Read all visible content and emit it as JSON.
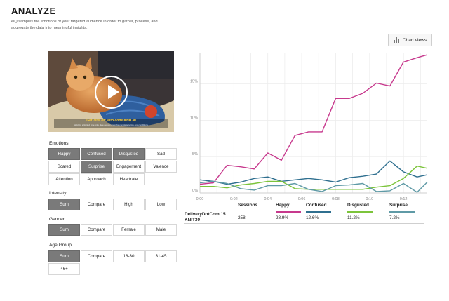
{
  "page": {
    "title": "ANALYZE",
    "description": "eiQ samples the emotions of your targeted audience in order to gather, process, and aggregate the data into meaningful insights."
  },
  "toolbar": {
    "chart_views_label": "Chart views",
    "chart_views_icon": "bar-chart-icon"
  },
  "video": {
    "promo_text": "Get 30% off with code KNIT30",
    "promo_subtext": "Valid for a limited time only. See delivery.com for complete terms and conditions.",
    "play_icon": "play-icon"
  },
  "filters": {
    "emotions": {
      "label": "Emotions",
      "options": [
        {
          "label": "Happy",
          "active": true
        },
        {
          "label": "Confused",
          "active": true
        },
        {
          "label": "Disgusted",
          "active": true
        },
        {
          "label": "Sad",
          "active": false
        },
        {
          "label": "Scared",
          "active": false
        },
        {
          "label": "Surprise",
          "active": true
        },
        {
          "label": "Engagement",
          "active": false
        },
        {
          "label": "Valence",
          "active": false
        },
        {
          "label": "Attention",
          "active": false
        },
        {
          "label": "Approach",
          "active": false
        },
        {
          "label": "Heartrate",
          "active": false
        }
      ]
    },
    "intensity": {
      "label": "Intensity",
      "options": [
        {
          "label": "Sum",
          "active": true
        },
        {
          "label": "Compare",
          "active": false
        },
        {
          "label": "High",
          "active": false
        },
        {
          "label": "Low",
          "active": false
        }
      ]
    },
    "gender": {
      "label": "Gender",
      "options": [
        {
          "label": "Sum",
          "active": true
        },
        {
          "label": "Compare",
          "active": false
        },
        {
          "label": "Female",
          "active": false
        },
        {
          "label": "Male",
          "active": false
        }
      ]
    },
    "age_group": {
      "label": "Age Group",
      "options": [
        {
          "label": "Sum",
          "active": true
        },
        {
          "label": "Compare",
          "active": false
        },
        {
          "label": "18-30",
          "active": false
        },
        {
          "label": "31-45",
          "active": false
        },
        {
          "label": "46+",
          "active": false
        }
      ]
    }
  },
  "chart_data": {
    "type": "line",
    "x_ticks": [
      "0:00",
      "0:02",
      "0:04",
      "0:06",
      "0:08",
      "0:10",
      "0:12"
    ],
    "x_range": [
      0,
      13.4
    ],
    "y_ticks": [
      "0%",
      "5%",
      "10%",
      "15%"
    ],
    "y_range": [
      0,
      19.2
    ],
    "grid": true,
    "series": [
      {
        "name": "Happy",
        "color": "#c7398d",
        "x": [
          0,
          0.8,
          1.6,
          2.4,
          3.2,
          4.0,
          4.8,
          5.6,
          6.4,
          7.2,
          8.0,
          8.8,
          9.6,
          10.4,
          11.2,
          12.0,
          12.8,
          13.4
        ],
        "values": [
          1.2,
          1.4,
          3.8,
          3.6,
          3.3,
          5.5,
          4.5,
          7.9,
          8.4,
          8.4,
          13.0,
          13.0,
          13.7,
          15.1,
          14.7,
          18.0,
          18.6,
          19.0
        ]
      },
      {
        "name": "Confused",
        "color": "#2f6f8f",
        "x": [
          0,
          0.8,
          1.6,
          2.4,
          3.2,
          4.0,
          4.8,
          5.6,
          6.4,
          7.2,
          8.0,
          8.8,
          9.6,
          10.4,
          11.2,
          12.0,
          12.8,
          13.4
        ],
        "values": [
          1.8,
          1.6,
          1.2,
          1.5,
          2.0,
          2.2,
          1.6,
          1.8,
          2.0,
          1.8,
          1.5,
          2.1,
          2.3,
          2.6,
          4.4,
          2.9,
          2.2,
          2.5
        ]
      },
      {
        "name": "Disgusted",
        "color": "#7cc43b",
        "x": [
          0,
          0.8,
          1.6,
          2.4,
          3.2,
          4.0,
          4.8,
          5.6,
          6.4,
          7.2,
          8.0,
          8.8,
          9.6,
          10.4,
          11.2,
          12.0,
          12.8,
          13.4
        ],
        "values": [
          0.9,
          0.9,
          0.7,
          1.1,
          1.3,
          1.6,
          1.6,
          0.6,
          0.5,
          0.5,
          0.5,
          0.5,
          0.5,
          0.8,
          1.0,
          2.0,
          3.7,
          3.4
        ]
      },
      {
        "name": "Surprise",
        "color": "#5f9aa6",
        "x": [
          0,
          0.8,
          1.6,
          2.4,
          3.2,
          4.0,
          4.8,
          5.6,
          6.4,
          7.2,
          8.0,
          8.8,
          9.6,
          10.4,
          11.2,
          12.0,
          12.8,
          13.4
        ],
        "values": [
          1.4,
          1.6,
          1.3,
          0.6,
          0.4,
          1.0,
          1.0,
          1.3,
          0.5,
          0.2,
          1.0,
          1.1,
          1.3,
          0.2,
          0.3,
          1.3,
          0.1,
          1.5
        ]
      }
    ]
  },
  "table": {
    "headers": {
      "sessions": "Sessions",
      "happy": "Happy",
      "confused": "Confused",
      "disgusted": "Disgusted",
      "surprise": "Surprise"
    },
    "row": {
      "name": "DeliveryDotCom 15 KNIT30",
      "sessions": "258",
      "happy": "28.9%",
      "confused": "12.6%",
      "disgusted": "11.2%",
      "surprise": "7.2%"
    }
  }
}
